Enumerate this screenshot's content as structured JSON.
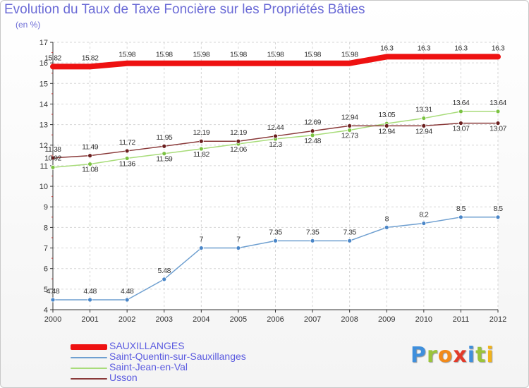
{
  "title": "Evolution du Taux de Taxe Foncière sur les Propriétés Bâties",
  "unit_label": "(en %)",
  "logo": {
    "text": "Proxiti",
    "letters": [
      {
        "ch": "P",
        "color": "#3f8fdc"
      },
      {
        "ch": "r",
        "color": "#9bc43a"
      },
      {
        "ch": "o",
        "color": "#f28a1a"
      },
      {
        "ch": "x",
        "color": "#e23a2a"
      },
      {
        "ch": "i",
        "color": "#3f8fdc"
      },
      {
        "ch": "t",
        "color": "#9bc43a"
      },
      {
        "ch": "i",
        "color": "#f2b31a"
      }
    ]
  },
  "chart_data": {
    "type": "line",
    "title": "Evolution du Taux de Taxe Foncière sur les Propriétés Bâties",
    "ylabel": "(en %)",
    "xlabel": "",
    "x": [
      "2000",
      "2001",
      "2002",
      "2003",
      "2004",
      "2005",
      "2006",
      "2007",
      "2008",
      "2009",
      "2010",
      "2011",
      "2012"
    ],
    "ylim": [
      4,
      17
    ],
    "yticks": [
      "4",
      "5",
      "6",
      "7",
      "8",
      "9",
      "10",
      "11",
      "12",
      "13",
      "14",
      "15",
      "16",
      "17"
    ],
    "grid": true,
    "legend_position": "bottom-left",
    "series": [
      {
        "name": "SAUXILLANGES",
        "color": "#ee1111",
        "width": 8,
        "values": [
          15.82,
          15.82,
          15.98,
          15.98,
          15.98,
          15.98,
          15.98,
          15.98,
          15.98,
          16.3,
          16.3,
          16.3,
          16.3
        ],
        "labels": [
          "15.82",
          "15.82",
          "15.98",
          "15.98",
          "15.98",
          "15.98",
          "15.98",
          "15.98",
          "15.98",
          "16.3",
          "16.3",
          "16.3",
          "16.3"
        ],
        "label_pos": "above"
      },
      {
        "name": "Saint-Quentin-sur-Sauxillanges",
        "color": "#6e9fd0",
        "point": "#4a86c8",
        "width": 1.5,
        "values": [
          4.48,
          4.48,
          4.48,
          5.48,
          7,
          7,
          7.35,
          7.35,
          7.35,
          8,
          8.2,
          8.5,
          8.5
        ],
        "labels": [
          "4.48",
          "4.48",
          "4.48",
          "5.48",
          "7",
          "7",
          "7.35",
          "7.35",
          "7.35",
          "8",
          "8.2",
          "8.5",
          "8.5"
        ],
        "label_pos": "above"
      },
      {
        "name": "Saint-Jean-en-Val",
        "color": "#a8dc7a",
        "point": "#7bc242",
        "width": 1.5,
        "values": [
          10.92,
          11.08,
          11.36,
          11.59,
          11.82,
          12.06,
          12.3,
          12.48,
          12.73,
          13.05,
          13.31,
          13.64,
          13.64
        ],
        "labels": [
          "10.92",
          "11.08",
          "11.36",
          "11.59",
          "11.82",
          "12.06",
          "12.3",
          "12.48",
          "12.73",
          "13.05",
          "13.31",
          "13.64",
          "13.64"
        ],
        "label_pos": "mixed"
      },
      {
        "name": "Usson",
        "color": "#8a3a3a",
        "point": "#6b1f1f",
        "width": 1.5,
        "values": [
          11.38,
          11.49,
          11.72,
          11.95,
          12.19,
          12.19,
          12.44,
          12.69,
          12.94,
          12.94,
          12.94,
          13.07,
          13.07
        ],
        "labels": [
          "11.38",
          "11.49",
          "11.72",
          "11.95",
          "12.19",
          "12.19",
          "12.44",
          "12.69",
          "12.94",
          "12.94",
          "12.94",
          "13.07",
          "13.07"
        ],
        "label_pos": "mixed"
      }
    ]
  }
}
